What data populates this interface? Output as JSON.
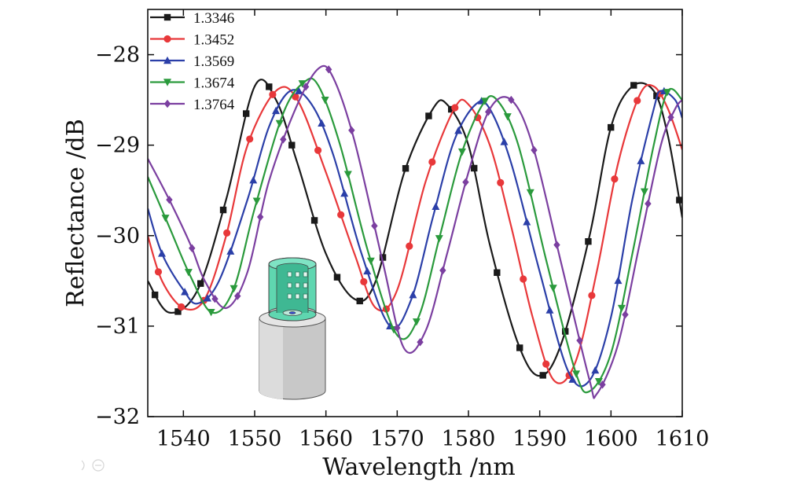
{
  "chart_data": {
    "type": "line",
    "xlabel": "Wavelength /nm",
    "ylabel": "Reflectance /dB",
    "xlim": [
      1535,
      1610
    ],
    "ylim": [
      -32,
      -27.5
    ],
    "xticks": [
      1540,
      1550,
      1560,
      1570,
      1580,
      1590,
      1600,
      1610
    ],
    "yticks": [
      -28,
      -29,
      -30,
      -31,
      -32
    ],
    "ytick_labels": [
      "−28",
      "−29",
      "−30",
      "−31",
      "−32"
    ],
    "legend_position": "top-left",
    "grid": false,
    "series": [
      {
        "name": "1.3346",
        "color": "#1a1a1a",
        "marker": "square",
        "points": [
          [
            1535,
            -30.5
          ],
          [
            1538,
            -30.85
          ],
          [
            1542,
            -30.6
          ],
          [
            1546,
            -29.6
          ],
          [
            1550,
            -28.35
          ],
          [
            1553,
            -28.5
          ],
          [
            1556,
            -29.2
          ],
          [
            1560,
            -30.2
          ],
          [
            1564,
            -30.7
          ],
          [
            1567,
            -30.5
          ],
          [
            1571,
            -29.3
          ],
          [
            1575,
            -28.6
          ],
          [
            1577,
            -28.55
          ],
          [
            1580,
            -29.0
          ],
          [
            1583,
            -30.1
          ],
          [
            1587,
            -31.2
          ],
          [
            1590,
            -31.55
          ],
          [
            1593,
            -31.2
          ],
          [
            1597,
            -30.0
          ],
          [
            1600,
            -28.8
          ],
          [
            1603,
            -28.35
          ],
          [
            1606,
            -28.4
          ],
          [
            1608,
            -28.9
          ],
          [
            1610,
            -29.8
          ]
        ]
      },
      {
        "name": "1.3452",
        "color": "#e8383a",
        "marker": "circle",
        "points": [
          [
            1535,
            -30.0
          ],
          [
            1537,
            -30.5
          ],
          [
            1540,
            -30.8
          ],
          [
            1543,
            -30.7
          ],
          [
            1546,
            -30.0
          ],
          [
            1549,
            -29.0
          ],
          [
            1553,
            -28.4
          ],
          [
            1556,
            -28.5
          ],
          [
            1560,
            -29.3
          ],
          [
            1564,
            -30.2
          ],
          [
            1567,
            -30.8
          ],
          [
            1570,
            -30.6
          ],
          [
            1574,
            -29.4
          ],
          [
            1578,
            -28.6
          ],
          [
            1580,
            -28.55
          ],
          [
            1583,
            -29.0
          ],
          [
            1586,
            -29.9
          ],
          [
            1589,
            -30.9
          ],
          [
            1592,
            -31.6
          ],
          [
            1595,
            -31.4
          ],
          [
            1598,
            -30.4
          ],
          [
            1601,
            -29.2
          ],
          [
            1604,
            -28.45
          ],
          [
            1606,
            -28.35
          ],
          [
            1608,
            -28.6
          ],
          [
            1610,
            -29.05
          ]
        ]
      },
      {
        "name": "1.3569",
        "color": "#2b3fa8",
        "marker": "triangle-up",
        "points": [
          [
            1535,
            -29.7
          ],
          [
            1537,
            -30.2
          ],
          [
            1540,
            -30.6
          ],
          [
            1542,
            -30.75
          ],
          [
            1545,
            -30.5
          ],
          [
            1549,
            -29.6
          ],
          [
            1552,
            -28.8
          ],
          [
            1555,
            -28.4
          ],
          [
            1558,
            -28.55
          ],
          [
            1561,
            -29.1
          ],
          [
            1565,
            -30.2
          ],
          [
            1569,
            -31.0
          ],
          [
            1572,
            -30.7
          ],
          [
            1575,
            -29.8
          ],
          [
            1578,
            -28.95
          ],
          [
            1581,
            -28.55
          ],
          [
            1583,
            -28.6
          ],
          [
            1586,
            -29.2
          ],
          [
            1590,
            -30.4
          ],
          [
            1594,
            -31.5
          ],
          [
            1597,
            -31.6
          ],
          [
            1600,
            -30.9
          ],
          [
            1603,
            -29.6
          ],
          [
            1606,
            -28.6
          ],
          [
            1607,
            -28.4
          ],
          [
            1609,
            -28.5
          ],
          [
            1610,
            -28.7
          ]
        ]
      },
      {
        "name": "1.3674",
        "color": "#2a9a3c",
        "marker": "triangle-down",
        "points": [
          [
            1535,
            -29.35
          ],
          [
            1538,
            -29.9
          ],
          [
            1541,
            -30.45
          ],
          [
            1544,
            -30.85
          ],
          [
            1547,
            -30.6
          ],
          [
            1550,
            -29.7
          ],
          [
            1554,
            -28.65
          ],
          [
            1557,
            -28.3
          ],
          [
            1559,
            -28.35
          ],
          [
            1562,
            -29.0
          ],
          [
            1566,
            -30.2
          ],
          [
            1570,
            -31.1
          ],
          [
            1573,
            -30.9
          ],
          [
            1576,
            -30.0
          ],
          [
            1579,
            -29.1
          ],
          [
            1582,
            -28.55
          ],
          [
            1584,
            -28.5
          ],
          [
            1587,
            -29.0
          ],
          [
            1591,
            -30.3
          ],
          [
            1595,
            -31.5
          ],
          [
            1597,
            -31.72
          ],
          [
            1600,
            -31.3
          ],
          [
            1603,
            -30.2
          ],
          [
            1606,
            -29.0
          ],
          [
            1608,
            -28.4
          ],
          [
            1610,
            -28.5
          ]
        ]
      },
      {
        "name": "1.3764",
        "color": "#7b3fa0",
        "marker": "diamond",
        "points": [
          [
            1535,
            -29.15
          ],
          [
            1538,
            -29.6
          ],
          [
            1541,
            -30.1
          ],
          [
            1543,
            -30.5
          ],
          [
            1546,
            -30.8
          ],
          [
            1549,
            -30.4
          ],
          [
            1552,
            -29.4
          ],
          [
            1556,
            -28.55
          ],
          [
            1559,
            -28.15
          ],
          [
            1561,
            -28.25
          ],
          [
            1564,
            -28.95
          ],
          [
            1568,
            -30.3
          ],
          [
            1571,
            -31.25
          ],
          [
            1574,
            -31.05
          ],
          [
            1577,
            -30.2
          ],
          [
            1580,
            -29.3
          ],
          [
            1583,
            -28.6
          ],
          [
            1586,
            -28.5
          ],
          [
            1589,
            -29.0
          ],
          [
            1593,
            -30.3
          ],
          [
            1597,
            -31.6
          ],
          [
            1598,
            -31.75
          ],
          [
            1601,
            -31.2
          ],
          [
            1604,
            -30.1
          ],
          [
            1607,
            -29.0
          ],
          [
            1609,
            -28.6
          ],
          [
            1610,
            -28.5
          ]
        ]
      }
    ]
  },
  "inset_icon": "sensor-cylinder-icon"
}
